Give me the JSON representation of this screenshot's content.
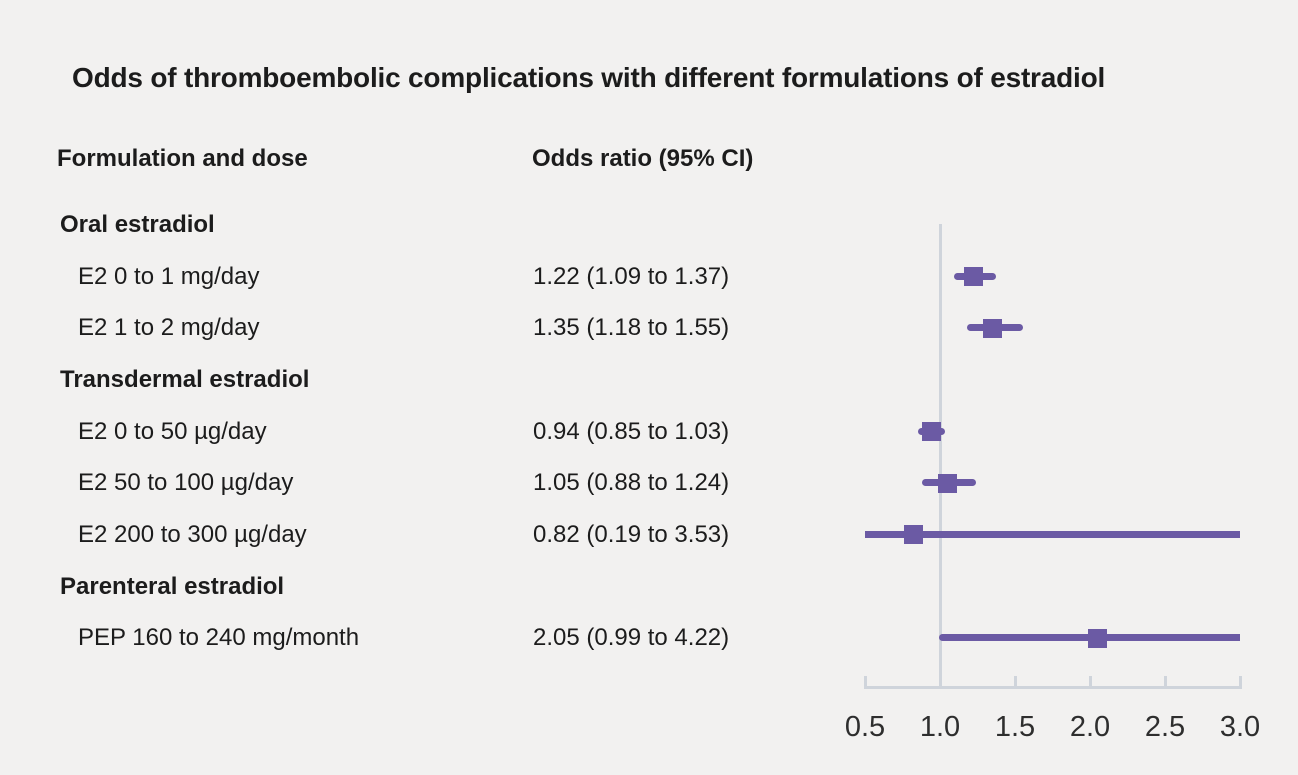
{
  "title": "Odds of thromboembolic complications with different formulations of estradiol",
  "columns": {
    "formulation": "Formulation and dose",
    "odds_ratio": "Odds ratio (95% CI)"
  },
  "colors": {
    "accent": "#6b5aa4",
    "axis": "#cfd4db",
    "background": "#f2f1f0",
    "text": "#1c1c1c"
  },
  "chart_data": {
    "type": "forest",
    "title": "Odds of thromboembolic complications with different formulations of estradiol",
    "xlabel": "",
    "ylabel": "",
    "xlim": [
      0.5,
      3.0
    ],
    "reference_line": 1.0,
    "ticks": [
      0.5,
      1.0,
      1.5,
      2.0,
      2.5,
      3.0
    ],
    "tick_labels": [
      "0.5",
      "1.0",
      "1.5",
      "2.0",
      "2.5",
      "3.0"
    ],
    "grid": "off",
    "groups": [
      {
        "label": "Oral estradiol",
        "items": [
          {
            "label": "E2 0 to 1 mg/day",
            "value_text": "1.22 (1.09 to 1.37)",
            "or": 1.22,
            "ci_low": 1.09,
            "ci_high": 1.37
          },
          {
            "label": "E2 1 to 2 mg/day",
            "value_text": "1.35 (1.18 to 1.55)",
            "or": 1.35,
            "ci_low": 1.18,
            "ci_high": 1.55
          }
        ]
      },
      {
        "label": "Transdermal estradiol",
        "items": [
          {
            "label": "E2 0 to 50 µg/day",
            "value_text": "0.94 (0.85 to 1.03)",
            "or": 0.94,
            "ci_low": 0.85,
            "ci_high": 1.03
          },
          {
            "label": "E2 50 to 100 µg/day",
            "value_text": "1.05 (0.88 to 1.24)",
            "or": 1.05,
            "ci_low": 0.88,
            "ci_high": 1.24
          },
          {
            "label": "E2 200 to 300 µg/day",
            "value_text": "0.82 (0.19 to 3.53)",
            "or": 0.82,
            "ci_low": 0.19,
            "ci_high": 3.53
          }
        ]
      },
      {
        "label": "Parenteral estradiol",
        "items": [
          {
            "label": "PEP 160 to 240 mg/month",
            "value_text": "2.05 (0.99 to 4.22)",
            "or": 2.05,
            "ci_low": 0.99,
            "ci_high": 4.22
          }
        ]
      }
    ]
  }
}
